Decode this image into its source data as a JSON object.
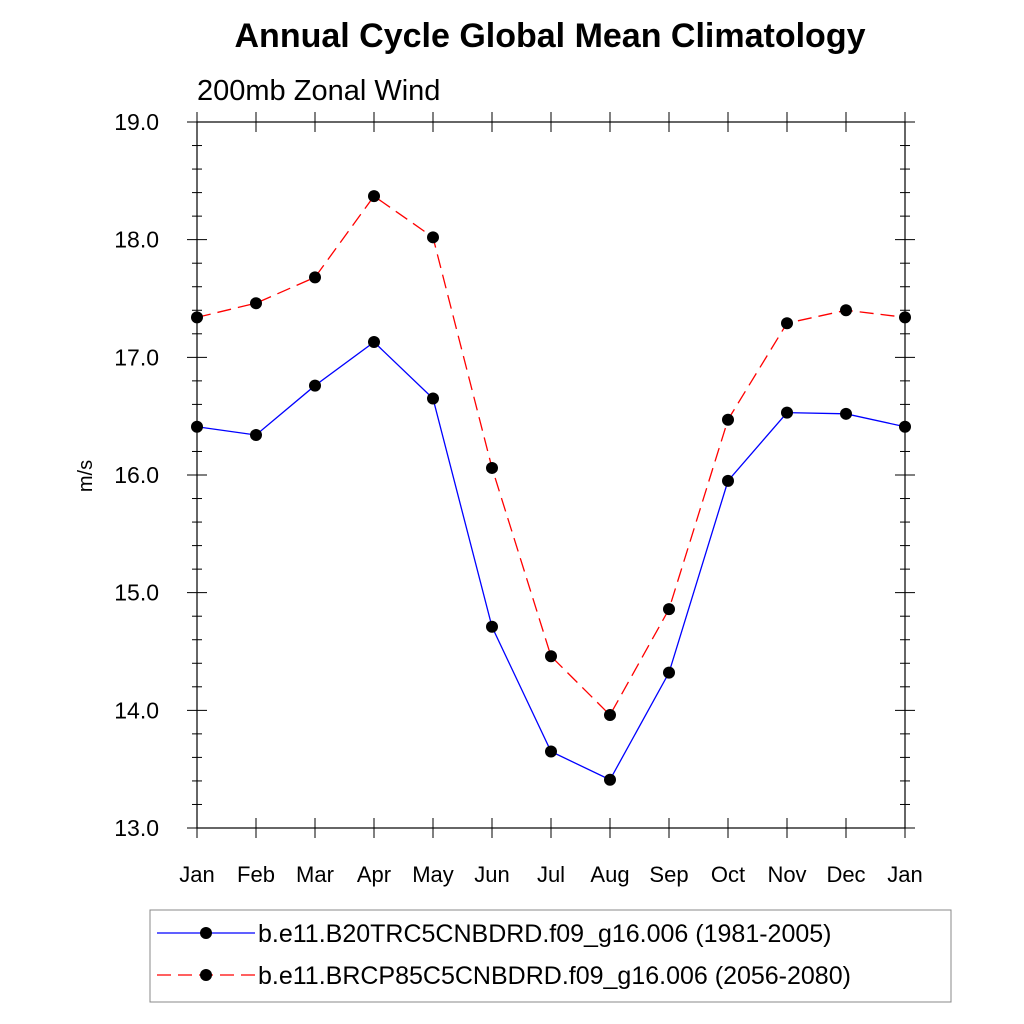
{
  "chart_data": {
    "type": "line",
    "title": "Annual Cycle Global Mean Climatology",
    "subtitle": "200mb Zonal Wind",
    "xlabel": "",
    "ylabel": "m/s",
    "ylim": [
      13.0,
      19.0
    ],
    "yticks": [
      "13.0",
      "14.0",
      "15.0",
      "16.0",
      "17.0",
      "18.0",
      "19.0"
    ],
    "categories": [
      "Jan",
      "Feb",
      "Mar",
      "Apr",
      "May",
      "Jun",
      "Jul",
      "Aug",
      "Sep",
      "Oct",
      "Nov",
      "Dec",
      "Jan"
    ],
    "grid": false,
    "legend_position": "bottom",
    "series": [
      {
        "name": "b.e11.B20TRC5CNBDRD.f09_g16.006 (1981-2005)",
        "color": "#0000ff",
        "dash": "solid",
        "marker": "filled-circle",
        "values": [
          16.41,
          16.34,
          16.76,
          17.13,
          16.65,
          14.71,
          13.65,
          13.41,
          14.32,
          15.95,
          16.53,
          16.52,
          16.41
        ]
      },
      {
        "name": "b.e11.BRCP85C5CNBDRD.f09_g16.006 (2056-2080)",
        "color": "#ff0000",
        "dash": "dashed",
        "marker": "filled-circle",
        "values": [
          17.34,
          17.46,
          17.68,
          18.37,
          18.02,
          16.06,
          14.46,
          13.96,
          14.86,
          16.47,
          17.29,
          17.4,
          17.34
        ]
      }
    ]
  }
}
